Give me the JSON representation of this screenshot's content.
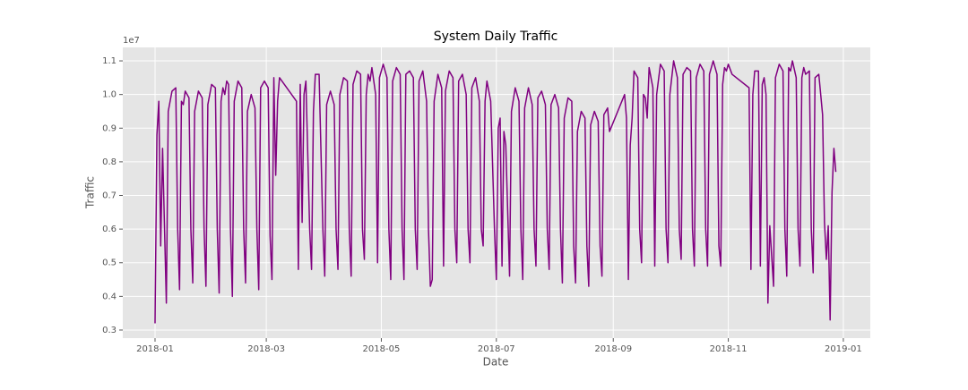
{
  "chart_data": {
    "type": "line",
    "title": "System Daily Traffic",
    "x_label": "Date",
    "y_label": "Traffic",
    "y_offset_label": "1e7",
    "color": "#800080",
    "grid": true,
    "x": [
      0,
      1,
      2,
      3,
      4,
      6,
      7,
      9,
      11,
      12,
      13,
      14,
      15,
      16,
      18,
      19,
      20,
      21,
      23,
      25,
      26,
      27,
      28,
      30,
      32,
      33,
      34,
      35,
      36,
      37,
      38,
      39,
      40,
      41,
      42,
      44,
      46,
      47,
      48,
      49,
      51,
      53,
      54,
      55,
      56,
      58,
      60,
      61,
      62,
      63,
      64,
      65,
      66,
      75,
      76,
      77,
      78,
      79,
      80,
      82,
      83,
      84,
      85,
      87,
      89,
      90,
      91,
      93,
      95,
      96,
      97,
      98,
      100,
      102,
      103,
      104,
      105,
      107,
      109,
      110,
      111,
      112,
      113,
      114,
      115,
      117,
      118,
      119,
      121,
      123,
      124,
      125,
      126,
      128,
      130,
      131,
      132,
      133,
      135,
      137,
      138,
      139,
      140,
      142,
      144,
      145,
      146,
      147,
      148,
      150,
      152,
      153,
      154,
      156,
      158,
      159,
      160,
      161,
      163,
      165,
      166,
      167,
      168,
      170,
      172,
      173,
      174,
      175,
      176,
      178,
      180,
      181,
      182,
      183,
      184,
      185,
      186,
      188,
      189,
      191,
      193,
      194,
      195,
      196,
      198,
      200,
      201,
      202,
      203,
      205,
      207,
      208,
      209,
      210,
      212,
      214,
      215,
      216,
      217,
      219,
      221,
      222,
      223,
      224,
      226,
      228,
      229,
      230,
      231,
      233,
      235,
      236,
      237,
      238,
      239,
      240,
      241,
      249,
      250,
      251,
      252,
      253,
      254,
      256,
      257,
      258,
      259,
      260,
      261,
      262,
      264,
      265,
      266,
      268,
      270,
      271,
      272,
      273,
      275,
      277,
      278,
      279,
      280,
      282,
      284,
      285,
      286,
      287,
      289,
      291,
      292,
      293,
      294,
      296,
      298,
      299,
      300,
      301,
      302,
      303,
      304,
      306,
      315,
      316,
      317,
      318,
      320,
      321,
      322,
      323,
      324,
      325,
      326,
      327,
      328,
      329,
      331,
      333,
      334,
      335,
      336,
      337,
      338,
      340,
      341,
      342,
      343,
      344,
      345,
      347,
      348,
      349,
      350,
      352,
      354,
      355,
      356,
      357,
      358,
      359,
      360,
      361
    ],
    "values": [
      0.32,
      0.88,
      0.98,
      0.55,
      0.84,
      0.38,
      0.95,
      1.01,
      1.02,
      0.6,
      0.42,
      0.98,
      0.97,
      1.01,
      0.99,
      0.6,
      0.44,
      0.95,
      1.01,
      0.99,
      0.6,
      0.43,
      0.97,
      1.03,
      1.02,
      0.6,
      0.41,
      0.98,
      1.02,
      1.0,
      1.04,
      1.03,
      0.6,
      0.4,
      0.98,
      1.04,
      1.02,
      0.6,
      0.44,
      0.95,
      1.0,
      0.96,
      0.6,
      0.42,
      1.02,
      1.04,
      1.02,
      0.58,
      0.45,
      1.05,
      0.76,
      0.98,
      1.05,
      0.98,
      0.48,
      1.03,
      0.62,
      1.0,
      1.04,
      0.6,
      0.48,
      0.95,
      1.06,
      1.06,
      0.6,
      0.46,
      0.97,
      1.01,
      0.97,
      0.6,
      0.48,
      1.0,
      1.05,
      1.04,
      0.6,
      0.46,
      1.03,
      1.07,
      1.06,
      0.6,
      0.51,
      1.0,
      1.06,
      1.04,
      1.08,
      1.0,
      0.5,
      1.05,
      1.09,
      1.05,
      0.6,
      0.45,
      1.04,
      1.08,
      1.06,
      0.6,
      0.45,
      1.06,
      1.07,
      1.05,
      0.6,
      0.48,
      1.04,
      1.07,
      0.98,
      0.6,
      0.43,
      0.45,
      0.98,
      1.06,
      1.02,
      0.49,
      1.01,
      1.07,
      1.05,
      0.6,
      0.5,
      1.04,
      1.06,
      1.0,
      0.6,
      0.5,
      1.02,
      1.05,
      0.98,
      0.6,
      0.55,
      0.98,
      1.04,
      0.98,
      0.6,
      0.45,
      0.9,
      0.93,
      0.49,
      0.89,
      0.85,
      0.46,
      0.95,
      1.02,
      0.98,
      0.6,
      0.45,
      0.96,
      1.02,
      0.97,
      0.6,
      0.49,
      0.99,
      1.01,
      0.97,
      0.6,
      0.48,
      0.97,
      1.0,
      0.96,
      0.6,
      0.44,
      0.93,
      0.99,
      0.98,
      0.55,
      0.44,
      0.89,
      0.95,
      0.93,
      0.55,
      0.43,
      0.91,
      0.95,
      0.92,
      0.55,
      0.46,
      0.94,
      0.95,
      0.96,
      0.89,
      1.0,
      0.93,
      0.45,
      0.85,
      0.93,
      1.07,
      1.05,
      0.6,
      0.5,
      1.0,
      0.99,
      0.93,
      1.08,
      1.02,
      0.49,
      1.0,
      1.09,
      1.07,
      0.6,
      0.5,
      1.0,
      1.1,
      1.05,
      0.6,
      0.51,
      1.06,
      1.08,
      1.07,
      0.6,
      0.49,
      1.05,
      1.09,
      1.07,
      0.6,
      0.49,
      1.06,
      1.1,
      1.06,
      0.55,
      0.49,
      1.03,
      1.08,
      1.07,
      1.09,
      1.06,
      1.02,
      0.48,
      1.0,
      1.07,
      1.07,
      0.49,
      1.03,
      1.05,
      1.0,
      0.38,
      0.61,
      0.52,
      0.43,
      1.05,
      1.09,
      1.07,
      0.6,
      0.46,
      1.08,
      1.07,
      1.1,
      1.05,
      0.6,
      0.49,
      1.05,
      1.08,
      1.06,
      1.07,
      0.6,
      0.47,
      1.05,
      1.06,
      0.94,
      0.62,
      0.51,
      0.61,
      0.33,
      0.71,
      0.84,
      0.77
    ],
    "xlim": [
      -17.1,
      379.3
    ],
    "ylim": [
      0.276,
      1.14
    ],
    "xticks": [
      {
        "value": 0,
        "label": "2018-01"
      },
      {
        "value": 59,
        "label": "2018-03"
      },
      {
        "value": 120,
        "label": "2018-05"
      },
      {
        "value": 181,
        "label": "2018-07"
      },
      {
        "value": 243,
        "label": "2018-09"
      },
      {
        "value": 304,
        "label": "2018-11"
      },
      {
        "value": 365,
        "label": "2019-01"
      }
    ],
    "yticks": [
      0.3,
      0.4,
      0.5,
      0.6,
      0.7,
      0.8,
      0.9,
      {
        "value": 1,
        "label": "1.0"
      },
      1.1
    ]
  }
}
